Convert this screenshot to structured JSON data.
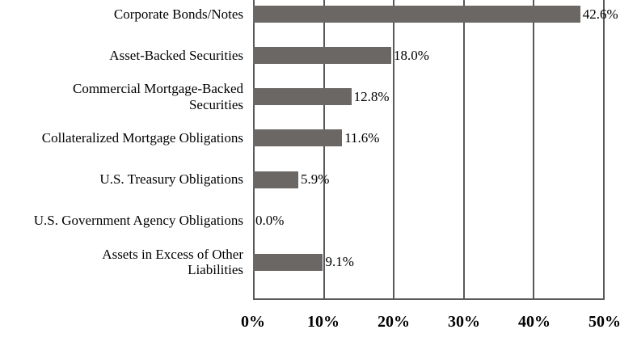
{
  "chart_data": {
    "type": "bar",
    "orientation": "horizontal",
    "title": "",
    "categories": [
      {
        "lines": [
          "Corporate Bonds/Notes"
        ]
      },
      {
        "lines": [
          "Asset-Backed Securities"
        ]
      },
      {
        "lines": [
          "Commercial Mortgage-Backed",
          "Securities"
        ]
      },
      {
        "lines": [
          "Collateralized Mortgage Obligations"
        ]
      },
      {
        "lines": [
          "U.S. Treasury Obligations"
        ]
      },
      {
        "lines": [
          "U.S. Government Agency Obligations"
        ]
      },
      {
        "lines": [
          "Assets in Excess of Other",
          "Liabilities"
        ]
      }
    ],
    "values": [
      42.6,
      18.0,
      12.8,
      11.6,
      5.9,
      0.0,
      9.1
    ],
    "value_labels": [
      "42.6%",
      "18.0%",
      "12.8%",
      "11.6%",
      "5.9%",
      "0.0%",
      "9.1%"
    ],
    "xlim": [
      0,
      50
    ],
    "x_ticks": [
      0,
      10,
      20,
      30,
      40,
      50
    ],
    "x_tick_labels": [
      "0%",
      "10%",
      "20%",
      "30%",
      "40%",
      "50%"
    ],
    "grid": true,
    "legend": false,
    "colors": {
      "bar": "#6a6765",
      "gridline": "#595959",
      "text": "#000000",
      "background": "#ffffff"
    }
  }
}
